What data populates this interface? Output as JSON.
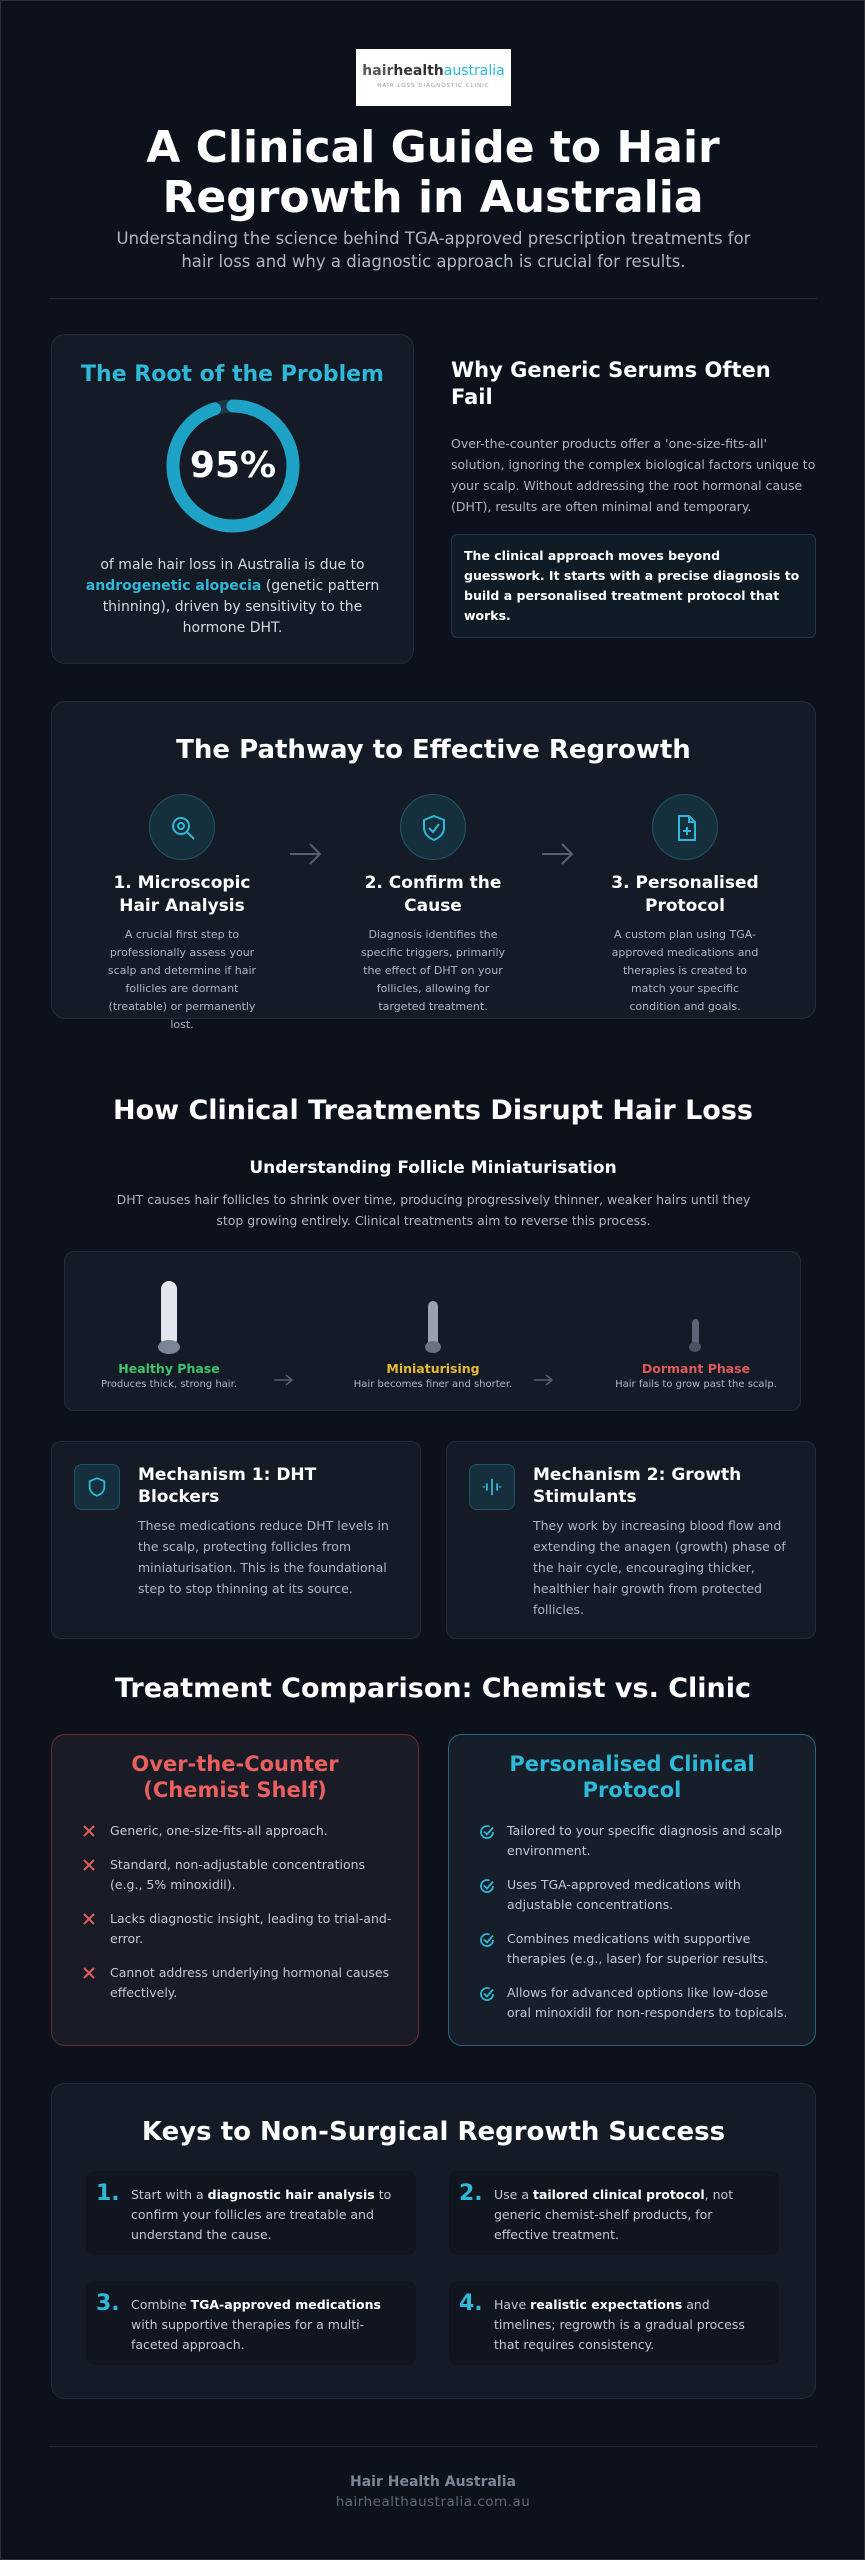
{
  "logo": {
    "brand": [
      "hair",
      "health",
      "australia"
    ],
    "tagline": "HAIR LOSS DIAGNOSTIC CLINIC"
  },
  "header": {
    "title": "A Clinical Guide to Hair Regrowth in Australia",
    "subtitle": "Understanding the science behind TGA-approved prescription treatments for hair loss and why a diagnostic approach is crucial for results."
  },
  "root_problem": {
    "heading": "The Root of the Problem",
    "stat": {
      "value": 95,
      "label": "95%",
      "range": [
        0,
        100
      ]
    },
    "text": [
      "of male hair loss in Australia is due to ",
      "androgenetic alopecia",
      " (genetic pattern thinning), driven by sensitivity to the hormone DHT."
    ]
  },
  "generic_serums": {
    "heading": "Why Generic Serums Often Fail",
    "text": "Over-the-counter products offer a 'one-size-fits-all' solution, ignoring the complex biological factors unique to your scalp. Without addressing the root hormonal cause (DHT), results are often minimal and temporary.",
    "callout": "The clinical approach moves beyond guesswork. It starts with a precise diagnosis to build a personalised treatment protocol that works."
  },
  "pathway": {
    "title": "The Pathway to Effective Regrowth",
    "steps": [
      {
        "title": "1. Microscopic Hair Analysis",
        "text": "A crucial first step to professionally assess your scalp and determine if hair follicles are dormant (treatable) or permanently lost."
      },
      {
        "title": "2. Confirm the Cause",
        "text": "Diagnosis identifies the specific triggers, primarily the effect of DHT on your follicles, allowing for targeted treatment."
      },
      {
        "title": "3. Personalised Protocol",
        "text": "A custom plan using TGA-approved medications and therapies is created to match your specific condition and goals."
      }
    ]
  },
  "disruption": {
    "title": "How Clinical Treatments Disrupt Hair Loss",
    "subtitle": "Understanding Follicle Miniaturisation",
    "text": "DHT causes hair follicles to shrink over time, producing progressively thinner, weaker hairs until they stop growing entirely. Clinical treatments aim to reverse this process.",
    "phases": [
      {
        "name": "Healthy Phase",
        "text": "Produces thick, strong hair."
      },
      {
        "name": "Miniaturising",
        "text": "Hair becomes finer and shorter."
      },
      {
        "name": "Dormant Phase",
        "text": "Hair fails to grow past the scalp."
      }
    ]
  },
  "mechanisms": [
    {
      "title": "Mechanism 1: DHT Blockers",
      "text": "These medications reduce DHT levels in the scalp, protecting follicles from miniaturisation. This is the foundational step to stop thinning at its source."
    },
    {
      "title": "Mechanism 2: Growth Stimulants",
      "text": "They work by increasing blood flow and extending the anagen (growth) phase of the hair cycle, encouraging thicker, healthier hair growth from protected follicles."
    }
  ],
  "comparison": {
    "title": "Treatment Comparison: Chemist vs. Clinic",
    "columns": [
      {
        "title": "Over-the-Counter (Chemist Shelf)",
        "items": [
          "Generic, one-size-fits-all approach.",
          "Standard, non-adjustable concentrations (e.g., 5% minoxidil).",
          "Lacks diagnostic insight, leading to trial-and-error.",
          "Cannot address underlying hormonal causes effectively."
        ]
      },
      {
        "title": "Personalised Clinical Protocol",
        "items": [
          "Tailored to your specific diagnosis and scalp environment.",
          "Uses TGA-approved medications with adjustable concentrations.",
          "Combines medications with supportive therapies (e.g., laser) for superior results.",
          "Allows for advanced options like low-dose oral minoxidil for non-responders to topicals."
        ]
      }
    ]
  },
  "keys": {
    "title": "Keys to Non-Surgical Regrowth Success",
    "items": [
      {
        "number": "1.",
        "text": [
          "Start with a ",
          "diagnostic hair analysis",
          " to confirm your follicles are treatable and understand the cause."
        ]
      },
      {
        "number": "2.",
        "text": [
          "Use a ",
          "tailored clinical protocol",
          ", not generic chemist-shelf products, for effective treatment."
        ]
      },
      {
        "number": "3.",
        "text": [
          "Combine ",
          "TGA-approved medications",
          " with supportive therapies for a multi-faceted approach."
        ]
      },
      {
        "number": "4.",
        "text": [
          "Have ",
          "realistic expectations",
          " and timelines; regrowth is a gradual process that requires consistency."
        ]
      }
    ]
  },
  "footer": {
    "name": "Hair Health Australia",
    "url": "hairhealthaustralia.com.au"
  }
}
